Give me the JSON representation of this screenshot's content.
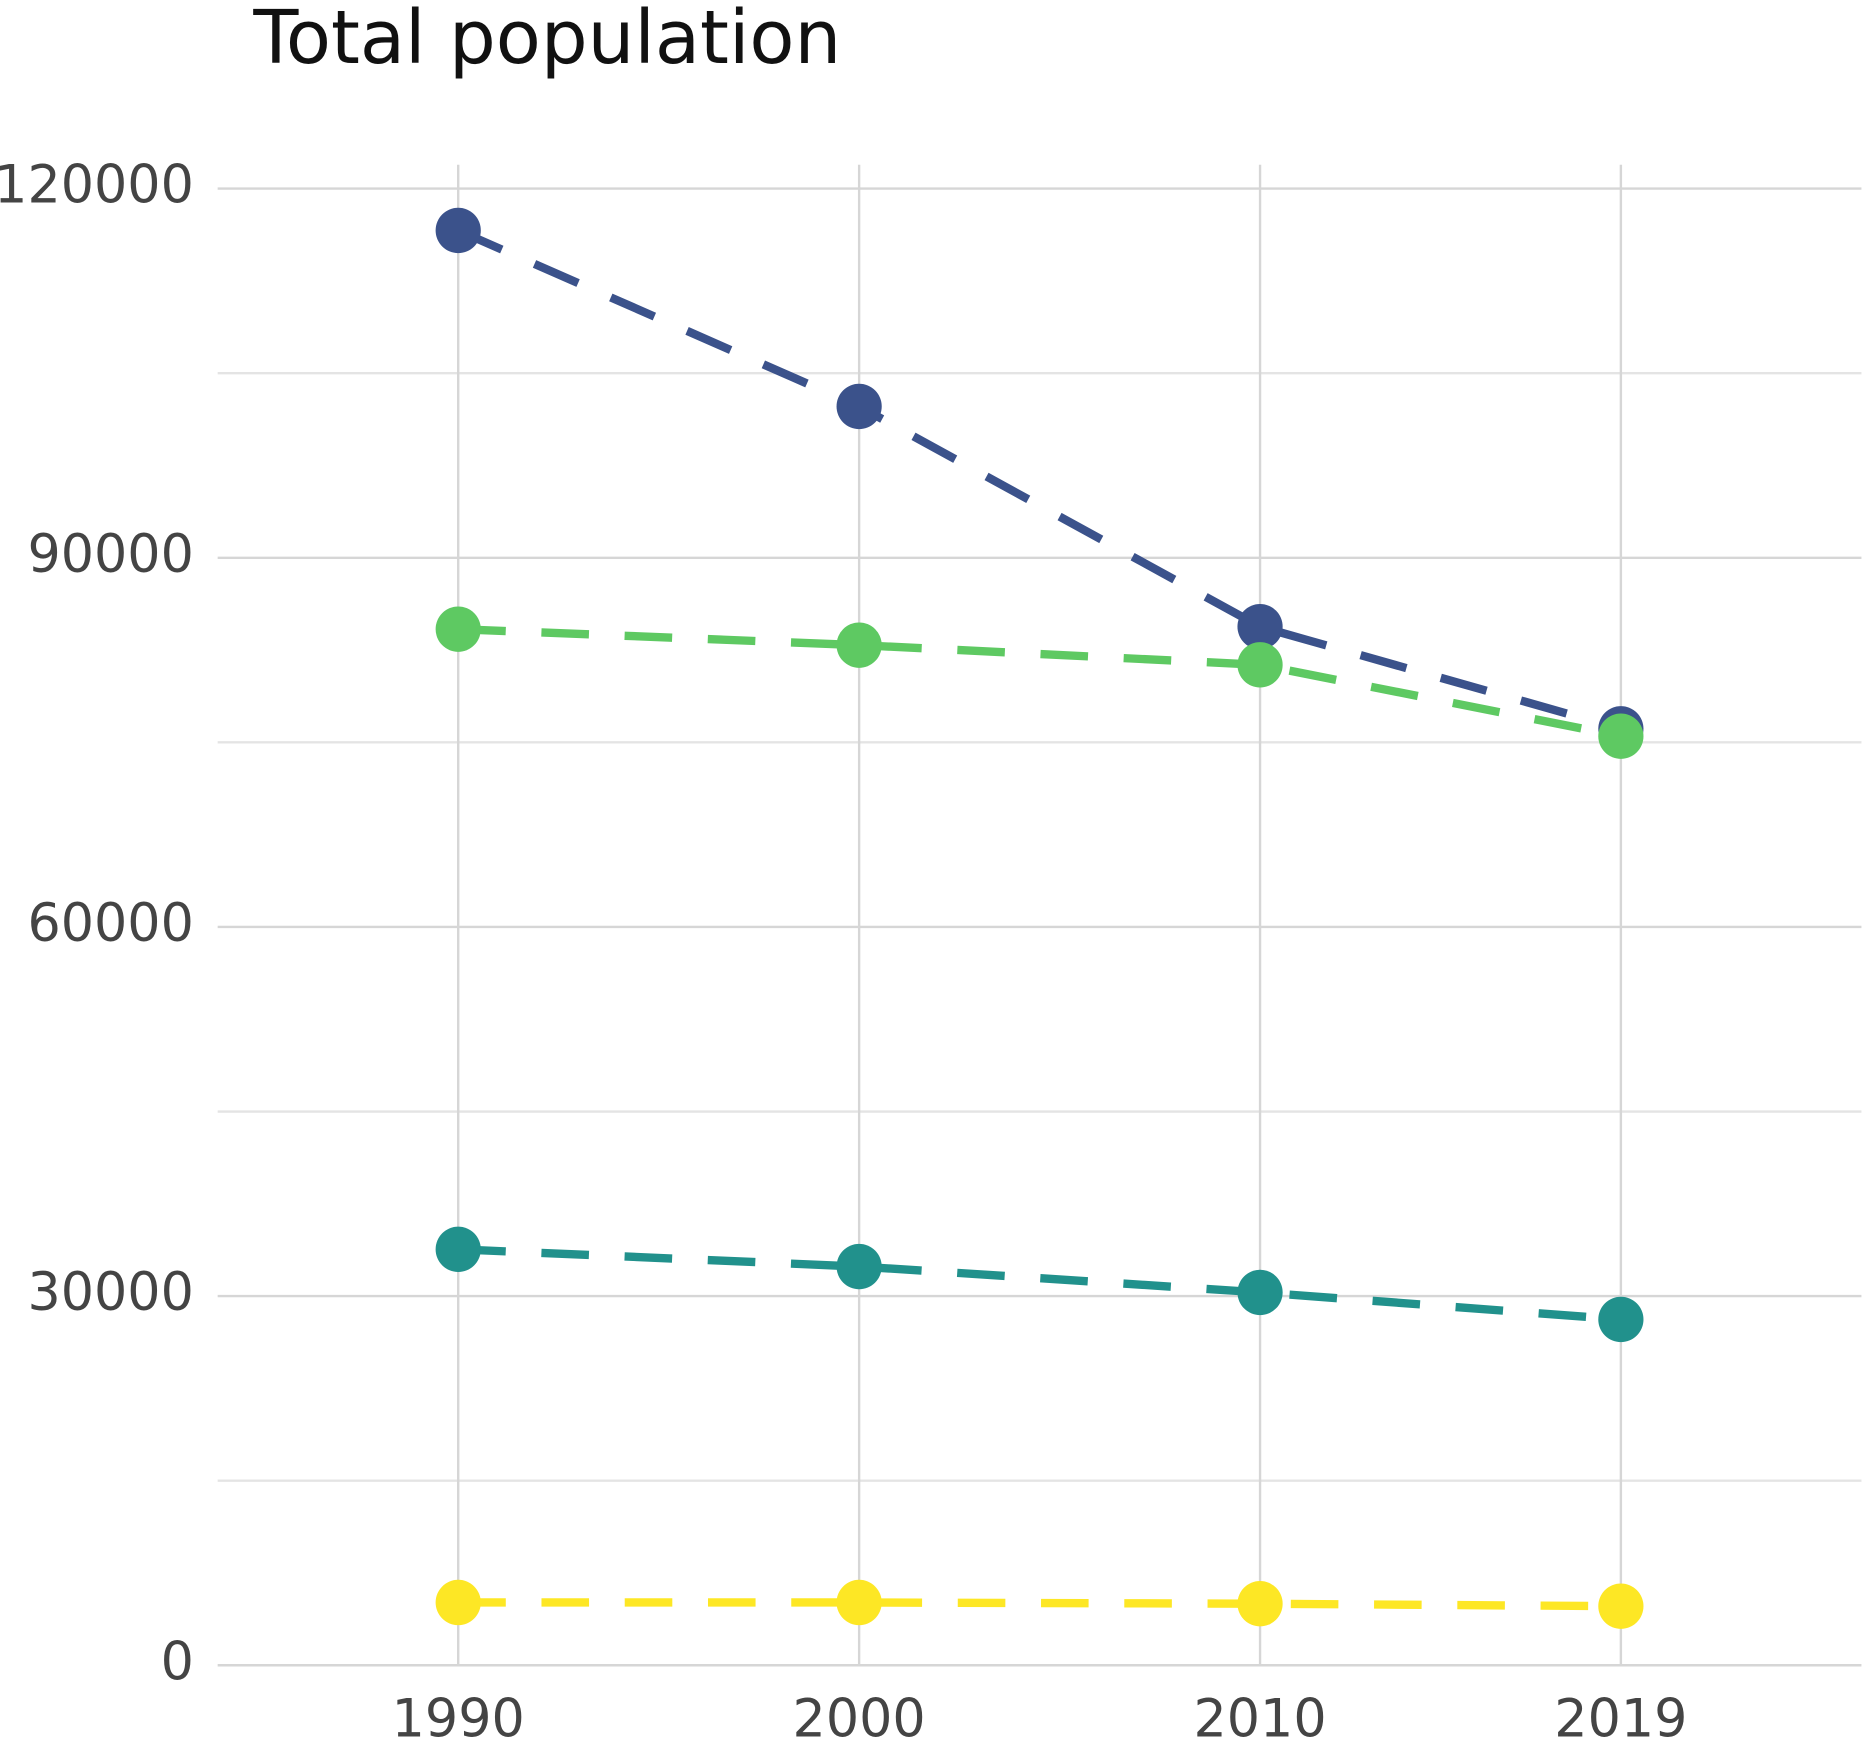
{
  "chart_data": {
    "type": "line",
    "title": "Total population",
    "x": [
      1990,
      2000,
      2010,
      2019
    ],
    "series": [
      {
        "color": "#3b528b",
        "values": [
          116600,
          102300,
          84400,
          76100
        ]
      },
      {
        "color": "#5ec962",
        "values": [
          84200,
          82900,
          81300,
          75500
        ]
      },
      {
        "color": "#21918c",
        "values": [
          33800,
          32400,
          30300,
          28100
        ]
      },
      {
        "color": "#fde725",
        "values": [
          5100,
          5100,
          5000,
          4800
        ]
      }
    ],
    "xlim": [
      1984,
      2025
    ],
    "xticks": [
      1990,
      2000,
      2010,
      2019
    ],
    "ylim": [
      0,
      120000
    ],
    "yticks": [
      0,
      30000,
      60000,
      90000,
      120000
    ],
    "grid": true
  }
}
